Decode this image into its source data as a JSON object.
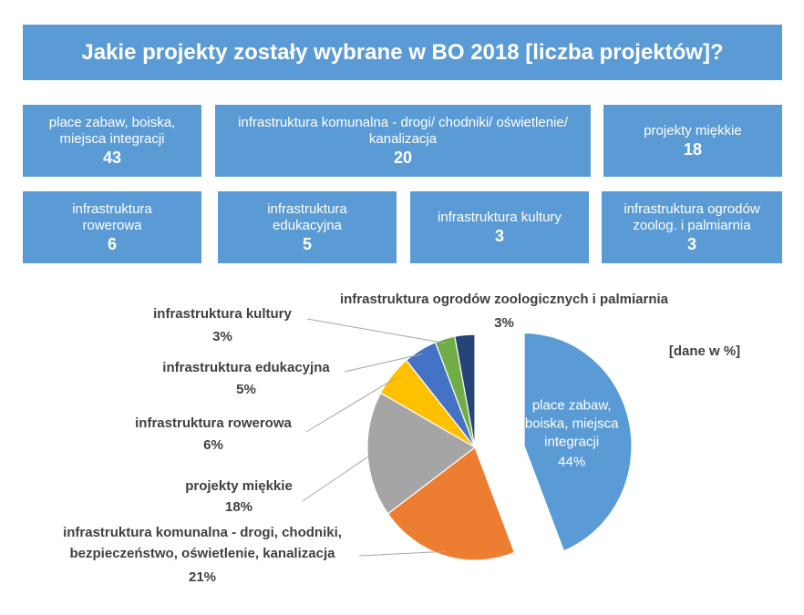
{
  "title": "Jakie projekty zostały wybrane w BO 2018 [liczba projektów]?",
  "boxes": [
    {
      "label": "place zabaw, boiska, miejsca integracji",
      "count": "43"
    },
    {
      "label": "infrastruktura komunalna - drogi/ chodniki/ oświetlenie/ kanalizacja",
      "count": "20"
    },
    {
      "label": "projekty miękkie",
      "count": "18"
    },
    {
      "label": "infrastruktura rowerowa",
      "count": "6"
    },
    {
      "label": "infrastruktura edukacyjna",
      "count": "5"
    },
    {
      "label": "infrastruktura kultury",
      "count": "3"
    },
    {
      "label": "infrastruktura ogrodów zoolog. i palmiarnia",
      "count": "3"
    }
  ],
  "chart_data": {
    "type": "pie",
    "unit_note": "[dane w %]",
    "slices": [
      {
        "name": "place zabaw, boiska, miejsca integracji",
        "value": 44,
        "label": "44%",
        "color": "#5b9bd5",
        "exploded": true
      },
      {
        "name": "infrastruktura komunalna - drogi, chodniki, bezpieczeństwo, oświetlenie, kanalizacja",
        "value": 21,
        "label": "21%",
        "color": "#ed7d31"
      },
      {
        "name": "projekty miękkie",
        "value": 18,
        "label": "18%",
        "color": "#a5a5a5"
      },
      {
        "name": "infrastruktura rowerowa",
        "value": 6,
        "label": "6%",
        "color": "#ffc000"
      },
      {
        "name": "infrastruktura edukacyjna",
        "value": 5,
        "label": "5%",
        "color": "#4472c4"
      },
      {
        "name": "infrastruktura kultury",
        "value": 3,
        "label": "3%",
        "color": "#70ad47"
      },
      {
        "name": "infrastruktura ogrodów zoologicznych i palmiarnia",
        "value": 3,
        "label": "3%",
        "color": "#264478"
      }
    ]
  }
}
